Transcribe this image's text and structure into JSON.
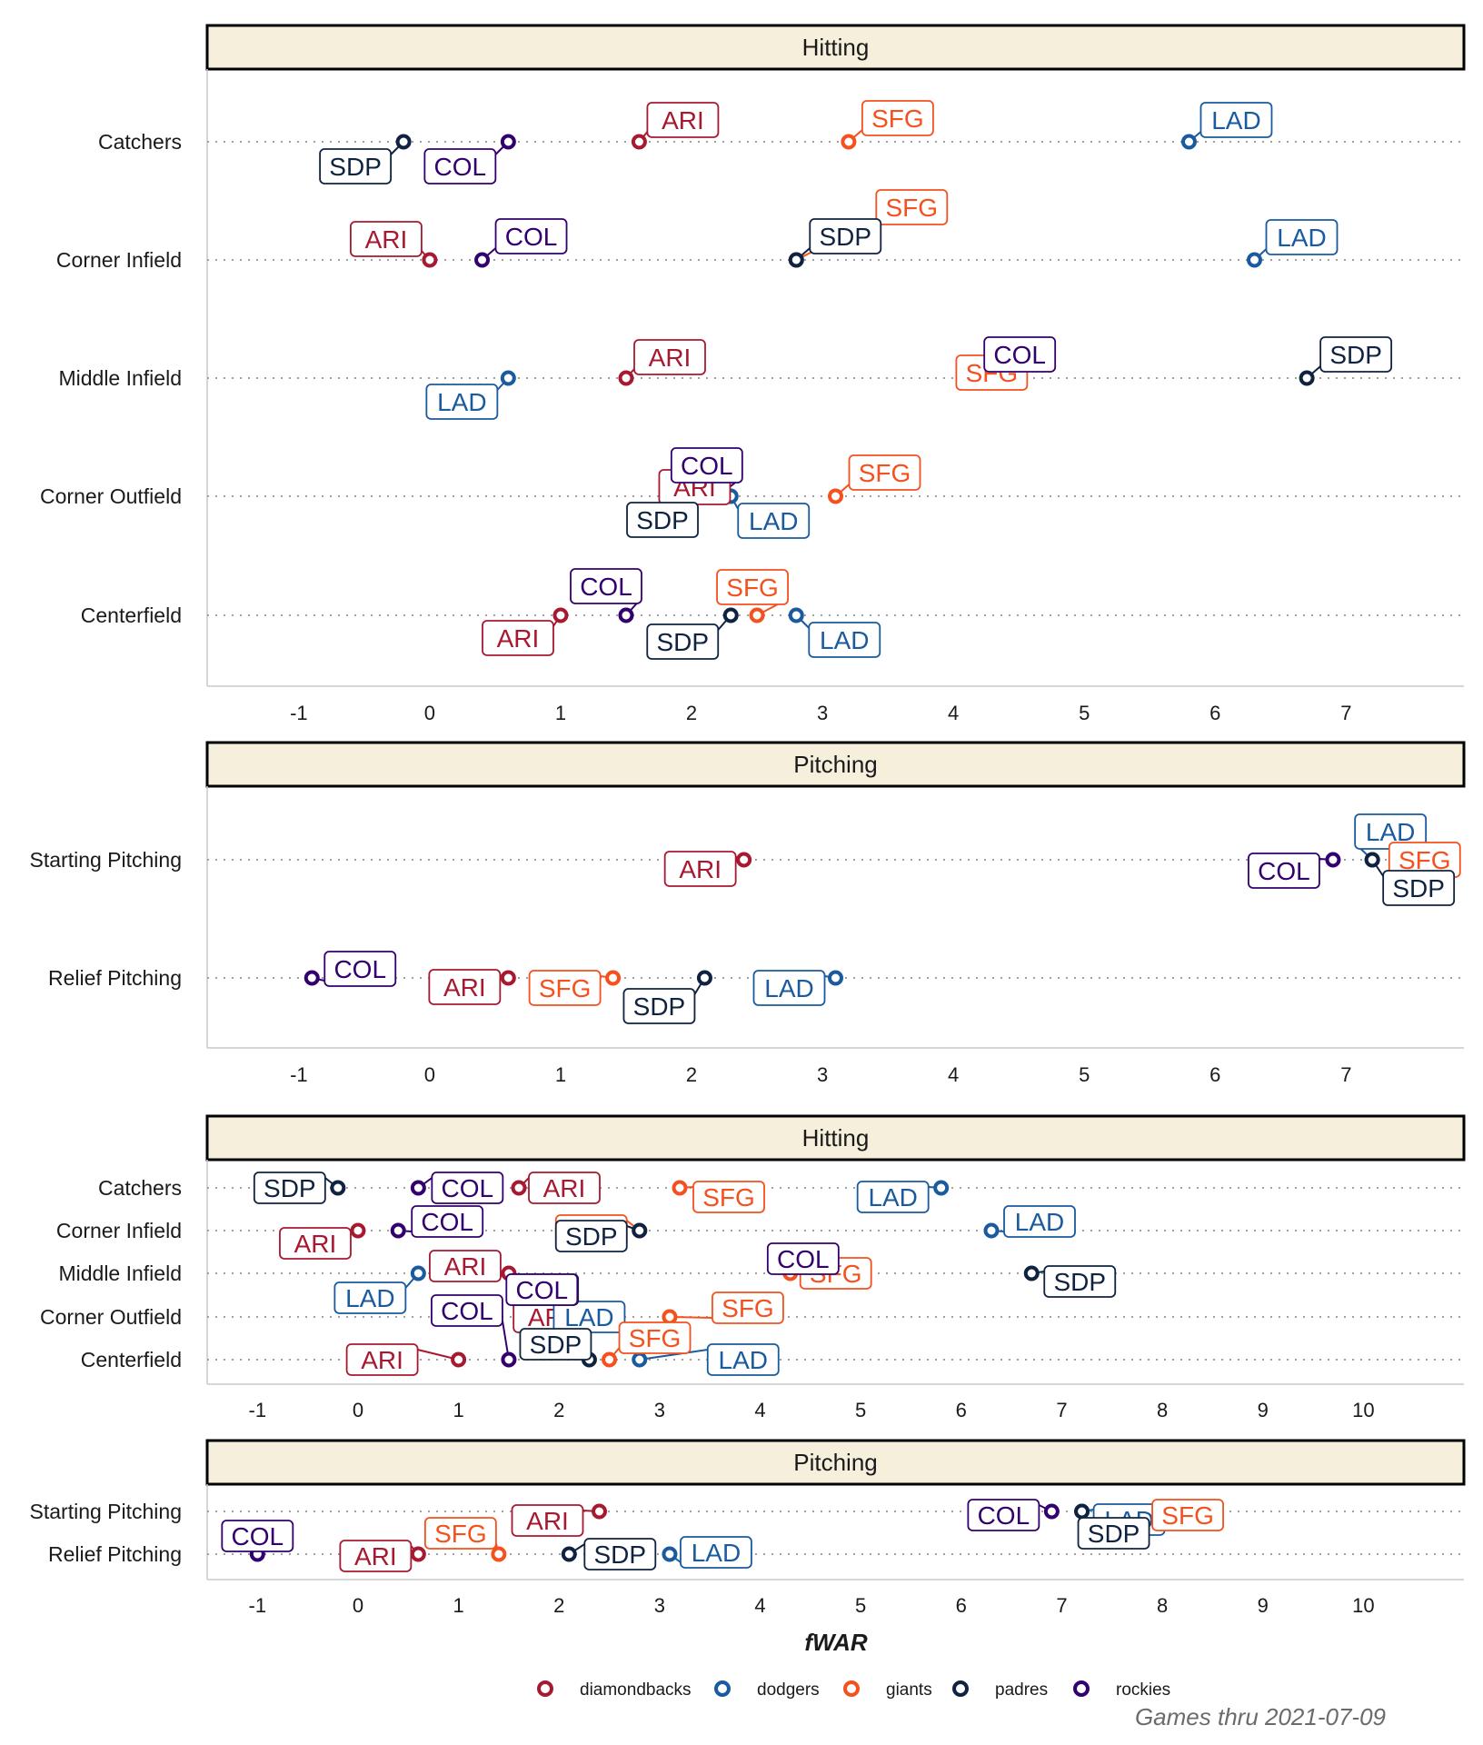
{
  "colors": {
    "diamondbacks": "#A71930",
    "dodgers": "#1A5A9E",
    "giants": "#F4511E",
    "padres": "#0F2341",
    "rockies": "#33006F",
    "strip_fill": "#F5EFDC",
    "grid": "#a0a0a0"
  },
  "team_codes": {
    "diamondbacks": "ARI",
    "dodgers": "LAD",
    "giants": "SFG",
    "padres": "SDP",
    "rockies": "COL"
  },
  "legend": [
    "diamondbacks",
    "dodgers",
    "giants",
    "padres",
    "rockies"
  ],
  "xlabel": "fWAR",
  "caption": "Games thru 2021-07-09",
  "chart_data": [
    {
      "type": "scatter",
      "title": "Hitting",
      "xlim": [
        -1.7,
        7.9
      ],
      "xticks": [
        -1,
        0,
        1,
        2,
        3,
        4,
        5,
        6,
        7
      ],
      "categories": [
        "Catchers",
        "Corner Infield",
        "Middle Infield",
        "Corner Outfield",
        "Centerfield"
      ],
      "series": [
        {
          "name": "diamondbacks",
          "values": [
            1.6,
            0.0,
            1.5,
            2.1,
            1.0
          ]
        },
        {
          "name": "dodgers",
          "values": [
            5.8,
            6.3,
            0.6,
            2.3,
            2.8
          ]
        },
        {
          "name": "giants",
          "values": [
            3.2,
            2.8,
            4.3,
            3.1,
            2.5
          ]
        },
        {
          "name": "padres",
          "values": [
            -0.2,
            2.8,
            6.7,
            2.0,
            2.3
          ]
        },
        {
          "name": "rockies",
          "values": [
            0.6,
            0.4,
            4.5,
            2.2,
            1.5
          ]
        }
      ]
    },
    {
      "type": "scatter",
      "title": "Pitching",
      "xlim": [
        -1.7,
        7.9
      ],
      "xticks": [
        -1,
        0,
        1,
        2,
        3,
        4,
        5,
        6,
        7
      ],
      "categories": [
        "Starting Pitching",
        "Relief Pitching"
      ],
      "series": [
        {
          "name": "diamondbacks",
          "values": [
            2.4,
            0.6
          ]
        },
        {
          "name": "dodgers",
          "values": [
            7.2,
            3.1
          ]
        },
        {
          "name": "giants",
          "values": [
            7.6,
            1.4
          ]
        },
        {
          "name": "padres",
          "values": [
            7.2,
            2.1
          ]
        },
        {
          "name": "rockies",
          "values": [
            6.9,
            -0.9
          ]
        }
      ]
    },
    {
      "type": "scatter",
      "title": "Hitting",
      "xlim": [
        -1.5,
        11.0
      ],
      "xticks": [
        -1,
        0,
        1,
        2,
        3,
        4,
        5,
        6,
        7,
        8,
        9,
        10
      ],
      "categories": [
        "Catchers",
        "Corner Infield",
        "Middle Infield",
        "Corner Outfield",
        "Centerfield"
      ],
      "series": [
        {
          "name": "diamondbacks",
          "values": [
            1.6,
            0.0,
            1.5,
            1.9,
            1.0
          ]
        },
        {
          "name": "dodgers",
          "values": [
            5.8,
            6.3,
            0.6,
            2.3,
            2.8
          ]
        },
        {
          "name": "giants",
          "values": [
            3.2,
            2.8,
            4.3,
            3.1,
            2.5
          ]
        },
        {
          "name": "padres",
          "values": [
            -0.2,
            2.8,
            6.7,
            1.9,
            2.3
          ]
        },
        {
          "name": "rockies",
          "values": [
            0.6,
            0.4,
            4.5,
            2.1,
            1.5
          ]
        }
      ]
    },
    {
      "type": "scatter",
      "title": "Pitching",
      "xlim": [
        -1.5,
        11.0
      ],
      "xticks": [
        -1,
        0,
        1,
        2,
        3,
        4,
        5,
        6,
        7,
        8,
        9,
        10
      ],
      "categories": [
        "Starting Pitching",
        "Relief Pitching"
      ],
      "series": [
        {
          "name": "diamondbacks",
          "values": [
            2.4,
            0.6
          ]
        },
        {
          "name": "dodgers",
          "values": [
            7.2,
            3.1
          ]
        },
        {
          "name": "giants",
          "values": [
            8.0,
            1.4
          ]
        },
        {
          "name": "padres",
          "values": [
            7.2,
            2.1
          ]
        },
        {
          "name": "rockies",
          "values": [
            6.9,
            -1.0
          ]
        }
      ]
    }
  ]
}
